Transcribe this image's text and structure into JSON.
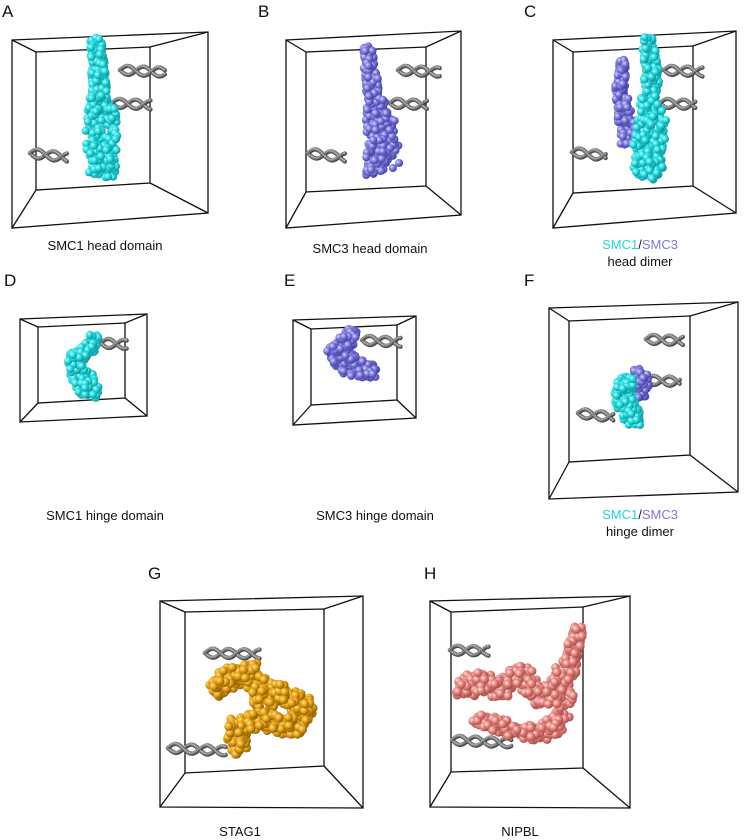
{
  "panels": {
    "A": {
      "letter": "A",
      "caption": "SMC1 head domain"
    },
    "B": {
      "letter": "B",
      "caption": "SMC3 head domain"
    },
    "C": {
      "letter": "C",
      "caption_part1": "SMC1",
      "caption_sep": "/",
      "caption_part2": "SMC3",
      "caption_line2": "head dimer"
    },
    "D": {
      "letter": "D",
      "caption": "SMC1 hinge domain"
    },
    "E": {
      "letter": "E",
      "caption": "SMC3 hinge domain"
    },
    "F": {
      "letter": "F",
      "caption_part1": "SMC1",
      "caption_sep": "/",
      "caption_part2": "SMC3",
      "caption_line2": "hinge dimer"
    },
    "G": {
      "letter": "G",
      "caption": "STAG1"
    },
    "H": {
      "letter": "H",
      "caption": "NIPBL"
    }
  },
  "colors": {
    "smc1": "#1ed8dc",
    "smc3": "#7b78dd",
    "stag1": "#e8a317",
    "nipbl": "#e8857f",
    "dna": "#555555",
    "box": "#111111"
  }
}
